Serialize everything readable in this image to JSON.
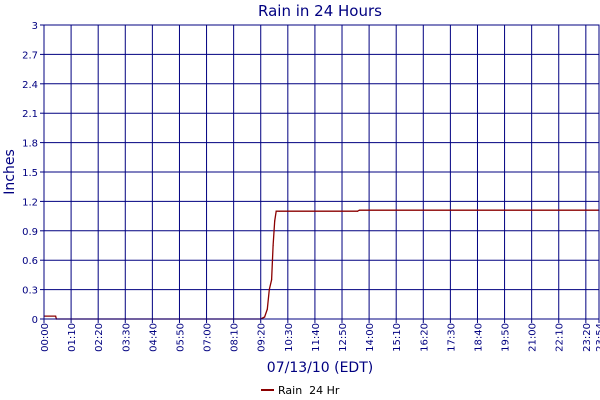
{
  "chart_data": {
    "type": "line",
    "title": "Rain in 24 Hours",
    "xlabel": "07/13/10 (EDT)",
    "ylabel": "Inches",
    "ylim": [
      0,
      3
    ],
    "xlim": [
      "00:00",
      "23:54"
    ],
    "y_ticks": [
      "0",
      "0.3",
      "0.6",
      "0.9",
      "1.2",
      "1.5",
      "1.8",
      "2.1",
      "2.4",
      "2.7",
      "3"
    ],
    "x_ticks": [
      "00:00",
      "01:10",
      "02:20",
      "03:30",
      "04:40",
      "05:50",
      "07:00",
      "08:10",
      "09:20",
      "10:30",
      "11:40",
      "12:50",
      "14:00",
      "15:10",
      "16:20",
      "17:30",
      "18:40",
      "19:50",
      "21:00",
      "22:10",
      "23:20",
      "23:54"
    ],
    "grid": true,
    "legend": "bottom-center",
    "series": [
      {
        "name": "Rain  24 Hr",
        "color": "#8b0000",
        "x": [
          "00:00",
          "00:30",
          "00:32",
          "09:20",
          "09:30",
          "09:37",
          "09:42",
          "09:48",
          "09:52",
          "09:56",
          "10:00",
          "10:08",
          "13:30",
          "13:35",
          "23:54"
        ],
        "y": [
          0.03,
          0.03,
          0.0,
          0.0,
          0.02,
          0.1,
          0.3,
          0.4,
          0.75,
          1.0,
          1.1,
          1.1,
          1.1,
          1.11,
          1.11
        ]
      }
    ]
  }
}
